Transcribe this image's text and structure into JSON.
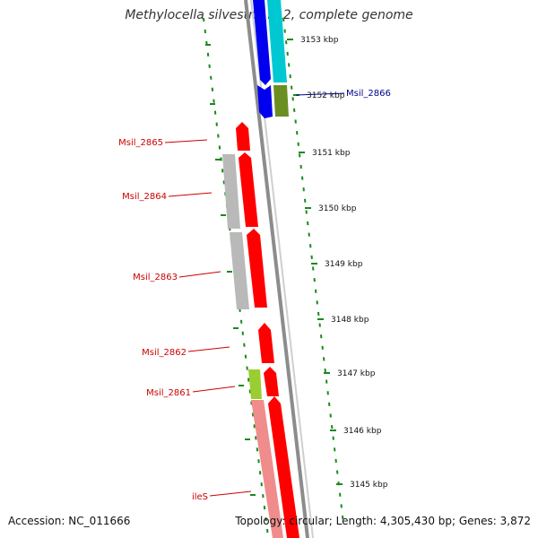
{
  "title": "Methylocella silvestris BL2, complete genome",
  "footer": {
    "accession": "Accession: NC_011666",
    "topology": "Topology: circular; Length: 4,305,430 bp; Genes: 3,872"
  },
  "colors": {
    "backbone": "#8c8c8c",
    "dots": "#1a8a1a",
    "gene_forward": "#ff0000",
    "gene_reverse": "#0000ee",
    "cds_gray": "#b9b9b9",
    "cyan": "#00c8d2",
    "olive": "#6b8e23",
    "lime": "#9acd32",
    "salmon": "#f08c8c",
    "red_label": "#cc0000",
    "blue_label": "#00008b"
  },
  "ticks": [
    {
      "label": "3153 kbp"
    },
    {
      "label": "3152 kbp"
    },
    {
      "label": "3151 kbp"
    },
    {
      "label": "3150 kbp"
    },
    {
      "label": "3149 kbp"
    },
    {
      "label": "3148 kbp"
    },
    {
      "label": "3147 kbp"
    },
    {
      "label": "3146 kbp"
    },
    {
      "label": "3145 kbp"
    }
  ],
  "genes": [
    {
      "label": "Msil_2866",
      "color": "#00008b"
    },
    {
      "label": "Msil_2865",
      "color": "#cc0000"
    },
    {
      "label": "Msil_2864",
      "color": "#cc0000"
    },
    {
      "label": "Msil_2863",
      "color": "#cc0000"
    },
    {
      "label": "Msil_2862",
      "color": "#cc0000"
    },
    {
      "label": "Msil_2861",
      "color": "#cc0000"
    },
    {
      "label": "ileS",
      "color": "#cc0000"
    }
  ]
}
